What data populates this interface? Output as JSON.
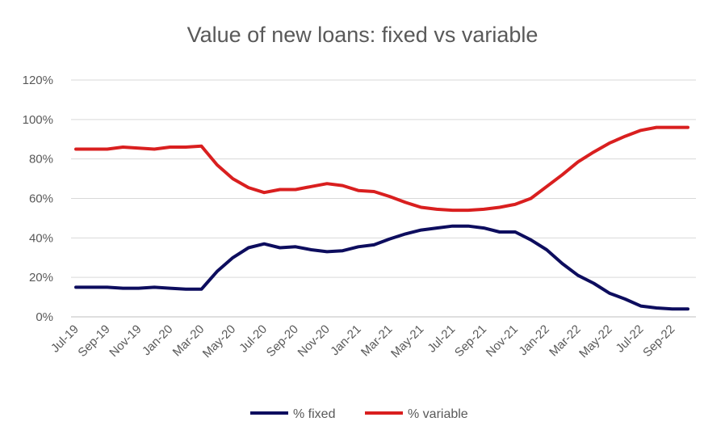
{
  "chart_data": {
    "type": "line",
    "title": "Value of new loans: fixed vs variable",
    "xlabel": "",
    "ylabel": "",
    "ylim": [
      0,
      120
    ],
    "y_ticks": [
      "0%",
      "20%",
      "40%",
      "60%",
      "80%",
      "100%",
      "120%"
    ],
    "x": [
      "Jul-19",
      "Aug-19",
      "Sep-19",
      "Oct-19",
      "Nov-19",
      "Dec-19",
      "Jan-20",
      "Feb-20",
      "Mar-20",
      "Apr-20",
      "May-20",
      "Jun-20",
      "Jul-20",
      "Aug-20",
      "Sep-20",
      "Oct-20",
      "Nov-20",
      "Dec-20",
      "Jan-21",
      "Feb-21",
      "Mar-21",
      "Apr-21",
      "May-21",
      "Jun-21",
      "Jul-21",
      "Aug-21",
      "Sep-21",
      "Oct-21",
      "Nov-21",
      "Dec-21",
      "Jan-22",
      "Feb-22",
      "Mar-22",
      "Apr-22",
      "May-22",
      "Jun-22",
      "Jul-22",
      "Aug-22",
      "Sep-22",
      "Oct-22"
    ],
    "x_tick_labels": [
      "Jul-19",
      "Sep-19",
      "Nov-19",
      "Jan-20",
      "Mar-20",
      "May-20",
      "Jul-20",
      "Sep-20",
      "Nov-20",
      "Jan-21",
      "Mar-21",
      "May-21",
      "Jul-21",
      "Sep-21",
      "Nov-21",
      "Jan-22",
      "Mar-22",
      "May-22",
      "Jul-22",
      "Sep-22"
    ],
    "grid": true,
    "legend": "bottom",
    "series": [
      {
        "name": "% fixed",
        "color": "#0d0d5e",
        "values": [
          15,
          15,
          15,
          14.5,
          14.5,
          15,
          14.5,
          14,
          14,
          23,
          30,
          35,
          37,
          35,
          35.5,
          34,
          33,
          33.5,
          35.5,
          36.5,
          39.5,
          42,
          44,
          45,
          46,
          46,
          45,
          43,
          43,
          39,
          34,
          27,
          21,
          17,
          12,
          9,
          5.5,
          4.5,
          4,
          4
        ]
      },
      {
        "name": "% variable",
        "color": "#d91f1f",
        "values": [
          85,
          85,
          85,
          86,
          85.5,
          85,
          86,
          86,
          86.5,
          77,
          70,
          65.5,
          63,
          64.5,
          64.5,
          66,
          67.5,
          66.5,
          64,
          63.5,
          61,
          58,
          55.5,
          54.5,
          54,
          54,
          54.5,
          55.5,
          57,
          60,
          66,
          72,
          78.5,
          83.5,
          88,
          91.5,
          94.5,
          96,
          96,
          96
        ]
      }
    ]
  }
}
